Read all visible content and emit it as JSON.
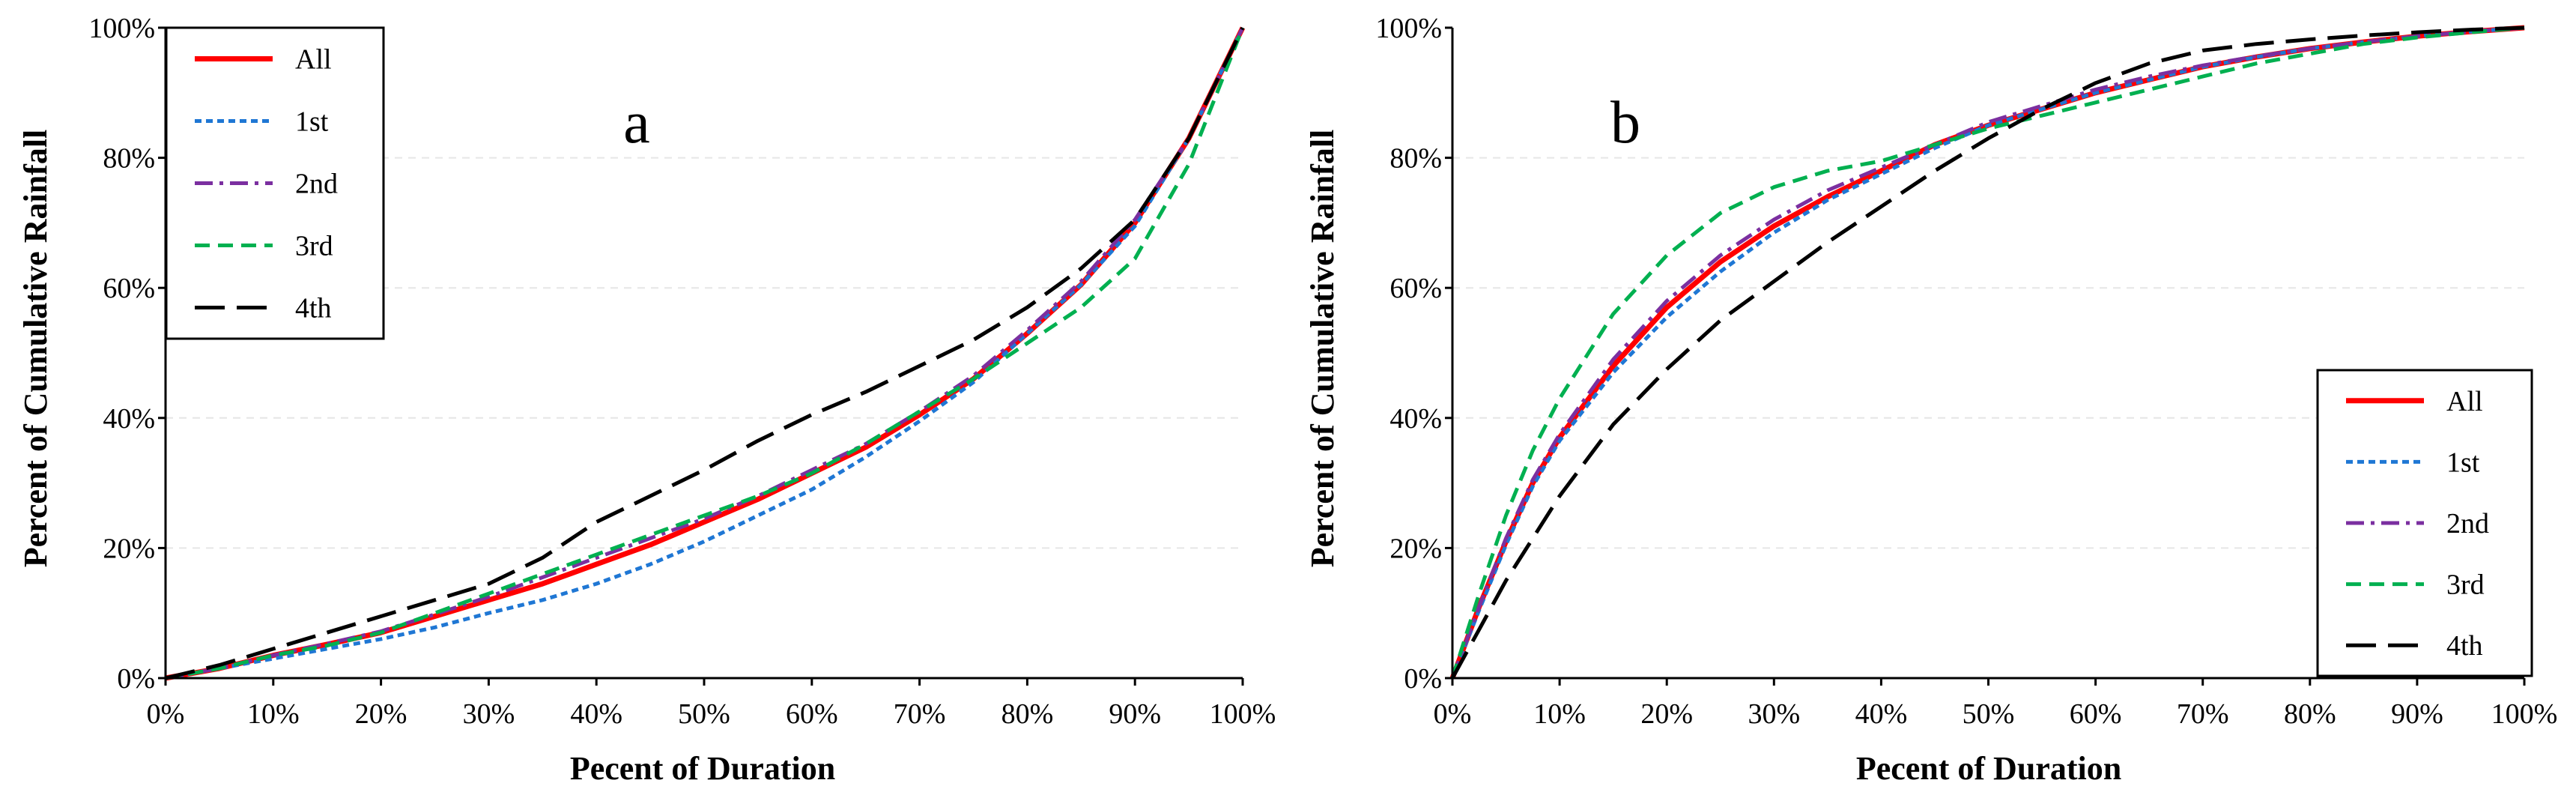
{
  "chart_data": [
    {
      "type": "line",
      "panel_label": "a",
      "xlabel": "Pecent of Duration",
      "ylabel": "Percent of  Cumulative Rainfall",
      "xlim": [
        0,
        100
      ],
      "ylim": [
        0,
        100
      ],
      "x_ticks": [
        "0%",
        "10%",
        "20%",
        "30%",
        "40%",
        "50%",
        "60%",
        "70%",
        "80%",
        "90%",
        "100%"
      ],
      "y_ticks": [
        "0%",
        "20%",
        "40%",
        "60%",
        "80%",
        "100%"
      ],
      "legend_position": "top-left",
      "x": [
        0,
        5,
        10,
        15,
        20,
        25,
        30,
        35,
        40,
        45,
        50,
        55,
        60,
        65,
        70,
        75,
        80,
        85,
        90,
        95,
        100
      ],
      "series": [
        {
          "name": "All",
          "color": "#ff0000",
          "style": "solid",
          "values": [
            0,
            1.5,
            3.5,
            5.2,
            7,
            9.5,
            12,
            14.5,
            17.5,
            20.5,
            24,
            27.5,
            31.5,
            35.5,
            40.5,
            46,
            53,
            60.5,
            70,
            83,
            100
          ]
        },
        {
          "name": "1st",
          "color": "#1f77d4",
          "style": "dotted",
          "values": [
            0,
            1.5,
            3,
            4.5,
            6,
            7.8,
            10,
            12,
            14.5,
            17.5,
            21,
            25,
            29,
            34,
            39.5,
            45.5,
            53,
            60.5,
            69.5,
            83,
            100
          ]
        },
        {
          "name": "2nd",
          "color": "#7b2fa0",
          "style": "dashdot",
          "values": [
            0,
            1.5,
            3.5,
            5.3,
            7.2,
            9.8,
            12.5,
            15.5,
            18.5,
            21.5,
            24.5,
            28,
            32,
            36,
            41,
            46.5,
            53.5,
            61,
            70.5,
            83,
            100
          ]
        },
        {
          "name": "3rd",
          "color": "#00b050",
          "style": "dashed",
          "values": [
            0,
            1.5,
            3.5,
            5,
            7,
            10,
            13,
            16,
            19,
            22,
            25,
            28,
            31.5,
            36,
            41,
            46,
            51.5,
            57,
            64.5,
            79,
            100
          ]
        },
        {
          "name": "4th",
          "color": "#000000",
          "style": "longdash",
          "values": [
            0,
            2,
            4.5,
            7,
            9.5,
            12,
            14.5,
            18.5,
            24,
            28,
            32,
            36.5,
            40.5,
            44,
            48,
            52,
            57,
            63,
            70.5,
            83,
            100
          ]
        }
      ]
    },
    {
      "type": "line",
      "panel_label": "b",
      "xlabel": "Pecent of Duration",
      "ylabel": "Percent of  Cumulative Rainfall",
      "xlim": [
        0,
        100
      ],
      "ylim": [
        0,
        100
      ],
      "x_ticks": [
        "0%",
        "10%",
        "20%",
        "30%",
        "40%",
        "50%",
        "60%",
        "70%",
        "80%",
        "90%",
        "100%"
      ],
      "y_ticks": [
        "0%",
        "20%",
        "40%",
        "60%",
        "80%",
        "100%"
      ],
      "legend_position": "bottom-right",
      "x": [
        0,
        2.5,
        5,
        7.5,
        10,
        15,
        20,
        25,
        30,
        35,
        40,
        45,
        50,
        55,
        60,
        65,
        70,
        75,
        80,
        85,
        90,
        95,
        100
      ],
      "series": [
        {
          "name": "All",
          "color": "#ff0000",
          "style": "solid",
          "values": [
            0,
            11,
            21,
            30,
            37,
            48,
            57,
            64,
            69.5,
            74,
            78,
            82,
            85,
            87.5,
            90,
            92,
            94,
            95.5,
            96.8,
            97.8,
            98.7,
            99.4,
            100
          ]
        },
        {
          "name": "1st",
          "color": "#1f77d4",
          "style": "dotted",
          "values": [
            0,
            10.5,
            20.5,
            29.5,
            36.5,
            47,
            55.5,
            62.5,
            68.5,
            73.5,
            77.5,
            81.5,
            85,
            87.5,
            90,
            92,
            94,
            95.5,
            96.8,
            97.8,
            98.7,
            99.4,
            100
          ]
        },
        {
          "name": "2nd",
          "color": "#7b2fa0",
          "style": "dashdot",
          "values": [
            0,
            11,
            21.5,
            30.5,
            37.5,
            49,
            58,
            65,
            70.5,
            75,
            78.5,
            82,
            85.5,
            88,
            90.5,
            92.5,
            94.2,
            95.6,
            96.8,
            97.8,
            98.7,
            99.4,
            100
          ]
        },
        {
          "name": "3rd",
          "color": "#00b050",
          "style": "dashed",
          "values": [
            0,
            13,
            25,
            35,
            43,
            56,
            65,
            71.5,
            75.5,
            78,
            79.5,
            82,
            84.5,
            86.5,
            88.5,
            90.5,
            92.5,
            94.5,
            96,
            97.5,
            98.5,
            99.3,
            100
          ]
        },
        {
          "name": "4th",
          "color": "#000000",
          "style": "longdash",
          "values": [
            0,
            7.5,
            15,
            21.5,
            28,
            39,
            47.5,
            55,
            61,
            67,
            72.5,
            78,
            83,
            87.5,
            91.5,
            94.5,
            96.5,
            97.5,
            98.2,
            98.8,
            99.3,
            99.7,
            100
          ]
        }
      ]
    }
  ]
}
